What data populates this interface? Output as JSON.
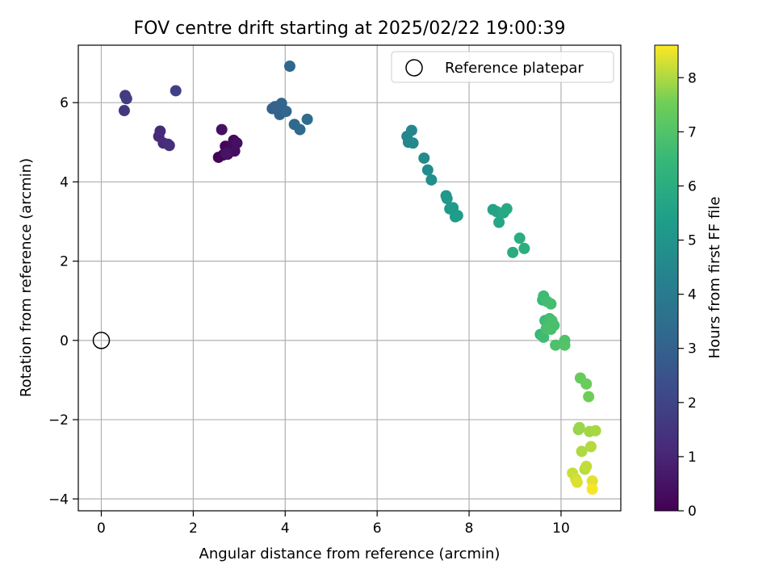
{
  "chart_data": {
    "type": "scatter",
    "title": "FOV centre drift starting at 2025/02/22 19:00:39",
    "xlabel": "Angular distance from reference (arcmin)",
    "ylabel": "Rotation from reference (arcmin)",
    "xlim": [
      -0.5,
      11.3
    ],
    "ylim": [
      -4.3,
      7.45
    ],
    "xticks": [
      0,
      2,
      4,
      6,
      8,
      10
    ],
    "yticks": [
      -4,
      -2,
      0,
      2,
      4,
      6
    ],
    "grid": true,
    "legend": {
      "location": "upper right",
      "entries": [
        "Reference platepar"
      ]
    },
    "reference_point": {
      "label": "Reference platepar",
      "x": 0,
      "y": 0
    },
    "colorbar": {
      "label": "Hours from first FF file",
      "min": 0,
      "max": 8.6,
      "ticks": [
        0,
        1,
        2,
        3,
        4,
        5,
        6,
        7,
        8
      ],
      "colormap": "viridis"
    },
    "series": [
      {
        "color_by": "hours",
        "points": [
          {
            "x": 2.55,
            "y": 4.62,
            "h": 0.05
          },
          {
            "x": 2.65,
            "y": 4.68,
            "h": 0.1
          },
          {
            "x": 2.7,
            "y": 4.9,
            "h": 0.15
          },
          {
            "x": 2.75,
            "y": 4.7,
            "h": 0.2
          },
          {
            "x": 2.8,
            "y": 4.85,
            "h": 0.25
          },
          {
            "x": 2.88,
            "y": 5.05,
            "h": 0.3
          },
          {
            "x": 2.9,
            "y": 4.78,
            "h": 0.35
          },
          {
            "x": 2.95,
            "y": 4.98,
            "h": 0.4
          },
          {
            "x": 2.62,
            "y": 5.32,
            "h": 0.45
          },
          {
            "x": 2.72,
            "y": 4.72,
            "h": 0.5
          },
          {
            "x": 1.25,
            "y": 5.15,
            "h": 1.1
          },
          {
            "x": 1.28,
            "y": 5.28,
            "h": 1.15
          },
          {
            "x": 1.35,
            "y": 4.98,
            "h": 1.2
          },
          {
            "x": 1.45,
            "y": 4.95,
            "h": 1.3
          },
          {
            "x": 1.48,
            "y": 4.92,
            "h": 1.35
          },
          {
            "x": 0.5,
            "y": 5.8,
            "h": 1.6
          },
          {
            "x": 0.52,
            "y": 6.18,
            "h": 1.7
          },
          {
            "x": 0.55,
            "y": 6.1,
            "h": 1.75
          },
          {
            "x": 1.62,
            "y": 6.3,
            "h": 1.9
          },
          {
            "x": 3.72,
            "y": 5.85,
            "h": 2.95
          },
          {
            "x": 3.78,
            "y": 5.9,
            "h": 3.0
          },
          {
            "x": 3.88,
            "y": 5.7,
            "h": 3.05
          },
          {
            "x": 3.92,
            "y": 5.98,
            "h": 3.1
          },
          {
            "x": 4.02,
            "y": 5.78,
            "h": 3.15
          },
          {
            "x": 4.1,
            "y": 6.92,
            "h": 3.2
          },
          {
            "x": 4.2,
            "y": 5.45,
            "h": 3.25
          },
          {
            "x": 4.32,
            "y": 5.32,
            "h": 3.3
          },
          {
            "x": 4.48,
            "y": 5.58,
            "h": 3.4
          },
          {
            "x": 6.65,
            "y": 5.15,
            "h": 4.4
          },
          {
            "x": 6.68,
            "y": 5.0,
            "h": 4.45
          },
          {
            "x": 6.75,
            "y": 5.3,
            "h": 4.5
          },
          {
            "x": 6.78,
            "y": 4.98,
            "h": 4.55
          },
          {
            "x": 7.02,
            "y": 4.6,
            "h": 4.65
          },
          {
            "x": 7.1,
            "y": 4.3,
            "h": 4.7
          },
          {
            "x": 7.18,
            "y": 4.05,
            "h": 4.75
          },
          {
            "x": 7.5,
            "y": 3.65,
            "h": 5.1
          },
          {
            "x": 7.52,
            "y": 3.58,
            "h": 5.15
          },
          {
            "x": 7.58,
            "y": 3.32,
            "h": 5.2
          },
          {
            "x": 7.65,
            "y": 3.35,
            "h": 5.25
          },
          {
            "x": 7.7,
            "y": 3.12,
            "h": 5.3
          },
          {
            "x": 7.75,
            "y": 3.15,
            "h": 5.35
          },
          {
            "x": 8.52,
            "y": 3.3,
            "h": 5.6
          },
          {
            "x": 8.6,
            "y": 3.25,
            "h": 5.65
          },
          {
            "x": 8.65,
            "y": 2.98,
            "h": 5.7
          },
          {
            "x": 8.75,
            "y": 3.22,
            "h": 5.75
          },
          {
            "x": 8.82,
            "y": 3.32,
            "h": 5.8
          },
          {
            "x": 8.95,
            "y": 2.22,
            "h": 5.95
          },
          {
            "x": 9.1,
            "y": 2.58,
            "h": 6.0
          },
          {
            "x": 9.2,
            "y": 2.32,
            "h": 6.05
          },
          {
            "x": 9.55,
            "y": 0.15,
            "h": 6.5
          },
          {
            "x": 9.6,
            "y": 1.02,
            "h": 6.55
          },
          {
            "x": 9.62,
            "y": 1.12,
            "h": 6.6
          },
          {
            "x": 9.65,
            "y": 0.5,
            "h": 6.62
          },
          {
            "x": 9.62,
            "y": 0.08,
            "h": 6.65
          },
          {
            "x": 9.7,
            "y": 0.98,
            "h": 6.68
          },
          {
            "x": 9.72,
            "y": 0.42,
            "h": 6.7
          },
          {
            "x": 9.75,
            "y": 0.55,
            "h": 6.72
          },
          {
            "x": 9.78,
            "y": 0.92,
            "h": 6.75
          },
          {
            "x": 9.78,
            "y": 0.28,
            "h": 6.78
          },
          {
            "x": 9.8,
            "y": 0.5,
            "h": 6.8
          },
          {
            "x": 9.85,
            "y": 0.38,
            "h": 6.82
          },
          {
            "x": 9.68,
            "y": 0.3,
            "h": 6.85
          },
          {
            "x": 9.88,
            "y": -0.12,
            "h": 6.9
          },
          {
            "x": 10.08,
            "y": 0.0,
            "h": 6.95
          },
          {
            "x": 10.08,
            "y": -0.12,
            "h": 7.0
          },
          {
            "x": 10.42,
            "y": -0.95,
            "h": 7.4
          },
          {
            "x": 10.55,
            "y": -1.1,
            "h": 7.45
          },
          {
            "x": 10.6,
            "y": -1.42,
            "h": 7.5
          },
          {
            "x": 10.38,
            "y": -2.25,
            "h": 7.8
          },
          {
            "x": 10.4,
            "y": -2.2,
            "h": 7.85
          },
          {
            "x": 10.62,
            "y": -2.3,
            "h": 7.9
          },
          {
            "x": 10.75,
            "y": -2.28,
            "h": 7.95
          },
          {
            "x": 10.45,
            "y": -2.8,
            "h": 8.0
          },
          {
            "x": 10.65,
            "y": -2.68,
            "h": 8.05
          },
          {
            "x": 10.52,
            "y": -3.25,
            "h": 8.1
          },
          {
            "x": 10.55,
            "y": -3.18,
            "h": 8.15
          },
          {
            "x": 10.25,
            "y": -3.35,
            "h": 8.2
          },
          {
            "x": 10.32,
            "y": -3.5,
            "h": 8.25
          },
          {
            "x": 10.35,
            "y": -3.58,
            "h": 8.35
          },
          {
            "x": 10.68,
            "y": -3.55,
            "h": 8.4
          },
          {
            "x": 10.68,
            "y": -3.75,
            "h": 8.55
          }
        ]
      }
    ]
  }
}
